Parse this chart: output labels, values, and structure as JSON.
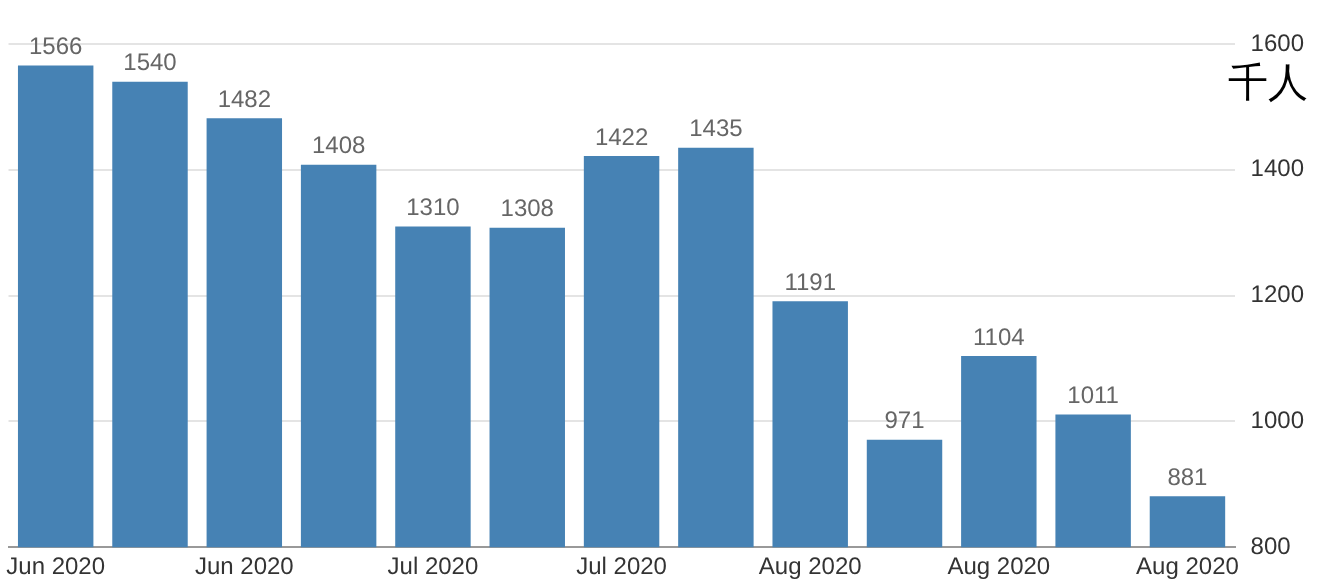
{
  "chart_data": {
    "type": "bar",
    "ylabel": "千人",
    "categories": [
      "Jun 2020",
      null,
      "Jun 2020",
      null,
      "Jul 2020",
      null,
      "Jul 2020",
      null,
      "Aug 2020",
      null,
      "Aug 2020",
      null,
      "Aug 2020"
    ],
    "values": [
      1566,
      1540,
      1482,
      1408,
      1310,
      1308,
      1422,
      1435,
      1191,
      971,
      1104,
      1011,
      881
    ],
    "color": "#4682b4",
    "ylim": [
      800,
      1600
    ],
    "yticks": [
      800,
      1000,
      1200,
      1400,
      1600
    ],
    "grid": "y",
    "data_labels": true,
    "legend": false
  }
}
